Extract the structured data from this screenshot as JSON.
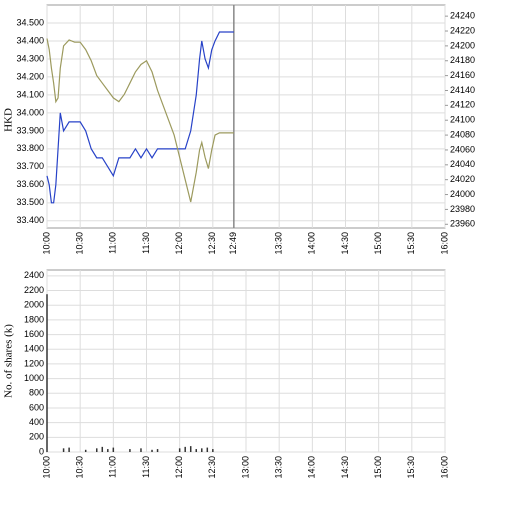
{
  "chart_data": [
    {
      "type": "line",
      "ylabel": "HKD",
      "x": [
        "10:00",
        "10:02",
        "10:04",
        "10:06",
        "10:08",
        "10:10",
        "10:12",
        "10:15",
        "10:20",
        "10:25",
        "10:30",
        "10:35",
        "10:40",
        "10:45",
        "10:50",
        "10:55",
        "11:00",
        "11:05",
        "11:10",
        "11:15",
        "11:20",
        "11:25",
        "11:30",
        "11:35",
        "11:40",
        "11:45",
        "11:50",
        "11:55",
        "12:00",
        "12:05",
        "12:10",
        "12:15",
        "12:18",
        "12:20",
        "12:23",
        "12:26",
        "12:29",
        "12:32",
        "12:36",
        "12:40",
        "12:49"
      ],
      "series": [
        {
          "color": "#2742c8",
          "values": [
            33.65,
            33.6,
            33.5,
            33.5,
            33.6,
            33.8,
            34.0,
            33.9,
            33.95,
            33.95,
            33.95,
            33.9,
            33.8,
            33.75,
            33.75,
            33.7,
            33.65,
            33.75,
            33.75,
            33.75,
            33.8,
            33.75,
            33.8,
            33.75,
            33.8,
            33.8,
            33.8,
            33.8,
            33.8,
            33.8,
            33.9,
            34.1,
            34.3,
            34.4,
            34.3,
            34.25,
            34.35,
            34.4,
            34.45,
            34.45,
            34.45
          ]
        },
        {
          "color": "#9c9a5e",
          "axis": "y2",
          "values": [
            24210,
            24195,
            24170,
            24150,
            24125,
            24130,
            24170,
            24200,
            24208,
            24205,
            24205,
            24195,
            24180,
            24160,
            24150,
            24140,
            24130,
            24125,
            24135,
            24150,
            24165,
            24175,
            24180,
            24165,
            24140,
            24120,
            24100,
            24080,
            24050,
            24020,
            23990,
            24030,
            24060,
            24070,
            24050,
            24035,
            24060,
            24080,
            24083,
            24083,
            24083
          ]
        }
      ],
      "xlim": [
        "10:00",
        "16:00"
      ],
      "xticks": [
        "10:00",
        "10:30",
        "11:00",
        "11:30",
        "12:00",
        "12:30",
        "12:49",
        "13:30",
        "14:00",
        "14:30",
        "15:00",
        "15:30",
        "16:00"
      ],
      "ylim": [
        33.36,
        34.6
      ],
      "yticks": [
        {
          "value": 33.4,
          "label": "33.400"
        },
        {
          "value": 33.5,
          "label": "33.500"
        },
        {
          "value": 33.6,
          "label": "33.600"
        },
        {
          "value": 33.7,
          "label": "33.700"
        },
        {
          "value": 33.8,
          "label": "33.800"
        },
        {
          "value": 33.9,
          "label": "33.900"
        },
        {
          "value": 34.0,
          "label": "34.000"
        },
        {
          "value": 34.1,
          "label": "34.100"
        },
        {
          "value": 34.2,
          "label": "34.200"
        },
        {
          "value": 34.3,
          "label": "34.300"
        },
        {
          "value": 34.4,
          "label": "34.400"
        },
        {
          "value": 34.5,
          "label": "34.500"
        }
      ],
      "y2lim": [
        23955,
        24255
      ],
      "y2ticks": [
        23960,
        23980,
        24000,
        24020,
        24040,
        24060,
        24080,
        24100,
        24120,
        24140,
        24160,
        24180,
        24200,
        24220,
        24240
      ],
      "grid": true
    },
    {
      "type": "bar",
      "ylabel": "No. of shares (k)",
      "color": "#333333",
      "x": [
        "10:00",
        "10:15",
        "10:20",
        "10:35",
        "10:45",
        "10:50",
        "10:55",
        "11:00",
        "11:15",
        "11:25",
        "11:35",
        "11:40",
        "12:00",
        "12:05",
        "12:10",
        "12:15",
        "12:20",
        "12:25",
        "12:30"
      ],
      "values": [
        2150,
        50,
        60,
        30,
        50,
        70,
        40,
        60,
        40,
        50,
        30,
        40,
        50,
        70,
        80,
        40,
        50,
        60,
        40
      ],
      "xlim": [
        "10:00",
        "16:00"
      ],
      "xticks": [
        "10:00",
        "10:30",
        "11:00",
        "11:30",
        "12:00",
        "12:30",
        "13:00",
        "13:30",
        "14:00",
        "14:30",
        "15:00",
        "15:30",
        "16:00"
      ],
      "ylim": [
        0,
        2480
      ],
      "yticks": [
        0,
        200,
        400,
        600,
        800,
        1000,
        1200,
        1400,
        1600,
        1800,
        2000,
        2200,
        2400
      ],
      "grid": true
    }
  ]
}
